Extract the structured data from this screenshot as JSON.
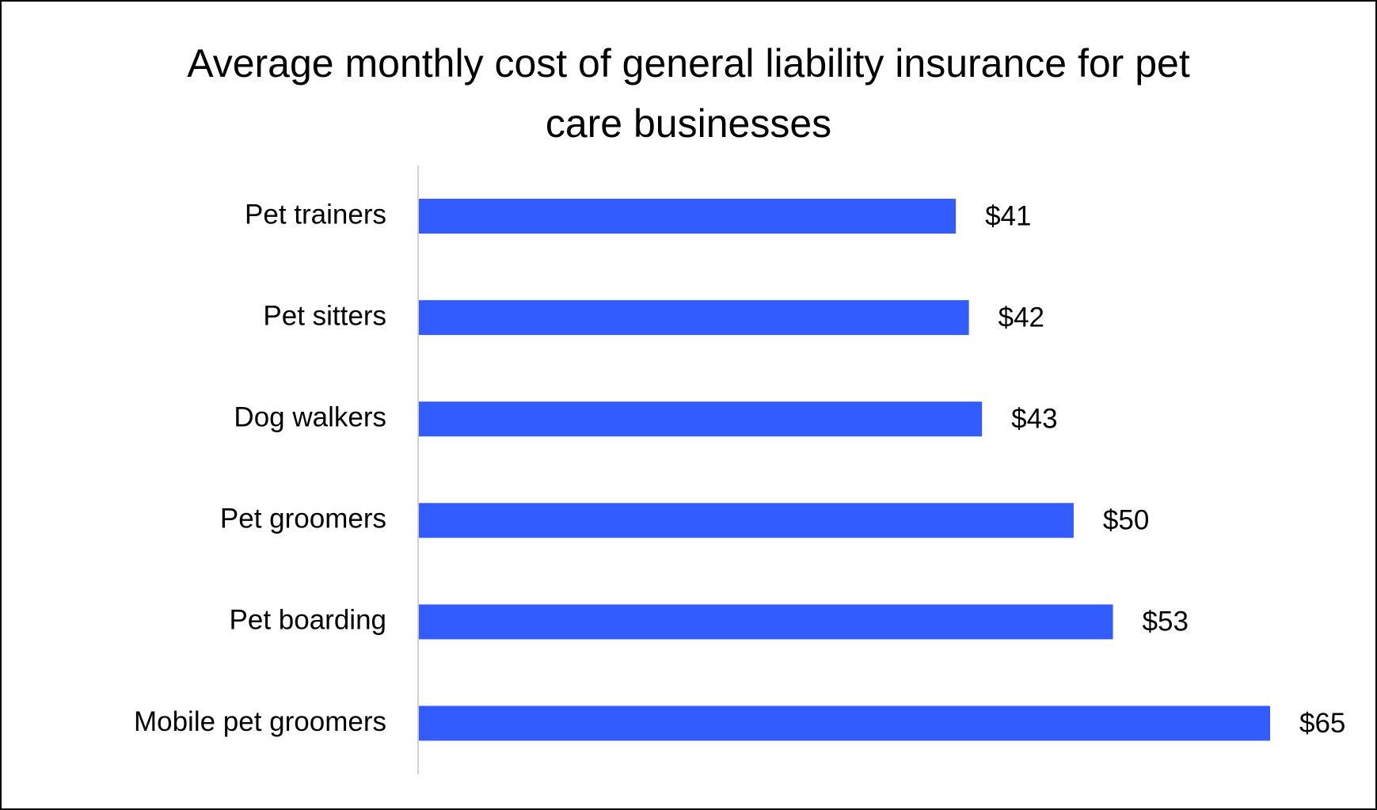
{
  "chart_data": {
    "type": "bar",
    "orientation": "horizontal",
    "title": "Average monthly cost of general liability insurance for pet care businesses",
    "categories": [
      "Pet trainers",
      "Pet sitters",
      "Dog walkers",
      "Pet groomers",
      "Pet boarding",
      "Mobile pet groomers"
    ],
    "values": [
      41,
      42,
      43,
      50,
      53,
      65
    ],
    "value_labels": [
      "$41",
      "$42",
      "$43",
      "$50",
      "$53",
      "$65"
    ],
    "color": "#335cff"
  }
}
